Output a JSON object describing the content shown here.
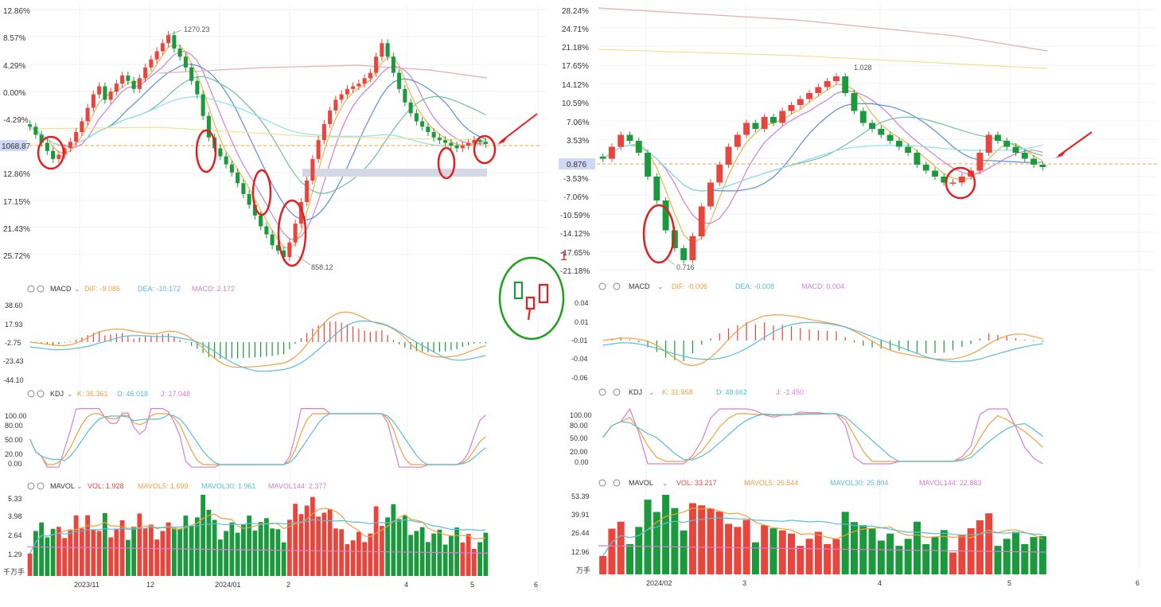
{
  "colors": {
    "up": "#e8453c",
    "down": "#1a9a3c",
    "dif": "#f0a040",
    "dea": "#5bbcd6",
    "macd_label": "#d47fd0",
    "k": "#f0a040",
    "d": "#5bbcd6",
    "j": "#d47fd0",
    "vol": "#f0a040",
    "mavol5": "#f0a040",
    "mavol30": "#5bbcd6",
    "mavol144": "#d47fd0",
    "annotation_red": "#e02020",
    "annotation_green": "#20a020",
    "current_price_line": "#f0a040",
    "current_price_box": "#cfd8f5"
  },
  "left": {
    "price_axis": [
      "12.86%",
      "8.57%",
      "4.29%",
      "0.00%",
      "-4.29%",
      "1068.87",
      "12.86%",
      "17.15%",
      "21.43%",
      "25.72%"
    ],
    "high_label": "1270.23",
    "low_label": "858.12",
    "macd_header": {
      "name": "MACD",
      "dif": "DIF: -9.086",
      "dea": "DEA: -10.172",
      "macd": "MACD: 2.172"
    },
    "macd_axis": [
      "38.60",
      "17.93",
      "-2.75",
      "-23.43",
      "-44.10"
    ],
    "kdj_header": {
      "name": "KDJ",
      "k": "K: 36.361",
      "d": "D: 46.018",
      "j": "J: 17.048"
    },
    "kdj_axis": [
      "100.00",
      "80.00",
      "50.00",
      "20.00",
      "0.00"
    ],
    "mavol_header": {
      "name": "MAVOL",
      "vol": "VOL: 1.928",
      "mavol5": "MAVOL5: 1.699",
      "mavol30": "MAVOL30: 1.961",
      "mavol144": "MAVOL144: 2.377"
    },
    "vol_axis": [
      "5.33",
      "3.98",
      "2.64",
      "1.29",
      "千万手"
    ],
    "x_axis": [
      "2023/11",
      "12",
      "2024/01",
      "2",
      "4",
      "5",
      "6"
    ]
  },
  "right": {
    "price_axis": [
      "28.24%",
      "24.71%",
      "21.18%",
      "17.65%",
      "14.12%",
      "10.59%",
      "7.06%",
      "3.53%",
      "0.876",
      "-3.53%",
      "-7.06%",
      "-10.59%",
      "-14.12%",
      "-17.65%",
      "-21.18%"
    ],
    "high_label": "1.028",
    "low_label": "0.716",
    "macd_header": {
      "name": "MACD",
      "dif": "DIF: -0.006",
      "dea": "DEA: -0.008",
      "macd": "MACD: 0.004"
    },
    "macd_axis": [
      "0.04",
      "0.01",
      "-0.01",
      "-0.04",
      "-0.06"
    ],
    "kdj_header": {
      "name": "KDJ",
      "k": "K: 31.958",
      "d": "D: 48.662",
      "j": "J: -1.450"
    },
    "kdj_axis": [
      "100.00",
      "80.00",
      "50.00",
      "20.00",
      "0.00"
    ],
    "mavol_header": {
      "name": "MAVOL",
      "vol": "VOL: 33.217",
      "mavol5": "MAVOL5: 26.544",
      "mavol30": "MAVOL30: 25.804",
      "mavol144": "MAVOL144: 22.883"
    },
    "vol_axis": [
      "53.39",
      "39.91",
      "26.44",
      "12.96",
      "万手"
    ],
    "x_axis": [
      "2024/02",
      "3",
      "4",
      "5",
      "6"
    ]
  },
  "annotation": {
    "mark": "1"
  },
  "chart_data": [
    {
      "type": "candlestick",
      "title": "",
      "panel": "left",
      "price_high": 1270.23,
      "price_low": 858.12,
      "current": 1068.87,
      "closes": [
        1100,
        1085,
        1070,
        1055,
        1040,
        1048,
        1060,
        1072,
        1090,
        1110,
        1135,
        1160,
        1175,
        1150,
        1165,
        1180,
        1195,
        1185,
        1170,
        1190,
        1210,
        1225,
        1240,
        1255,
        1270,
        1245,
        1230,
        1210,
        1185,
        1160,
        1120,
        1080,
        1060,
        1045,
        1030,
        1015,
        995,
        975,
        955,
        935,
        915,
        900,
        880,
        870,
        858,
        885,
        920,
        960,
        1000,
        1040,
        1075,
        1105,
        1130,
        1150,
        1160,
        1170,
        1175,
        1180,
        1190,
        1200,
        1230,
        1255,
        1230,
        1200,
        1170,
        1145,
        1125,
        1110,
        1100,
        1090,
        1080,
        1075,
        1070,
        1065,
        1060,
        1065,
        1070,
        1075,
        1072,
        1068
      ],
      "x_ticks": [
        "2023/11",
        "12",
        "2024/01",
        "2",
        "4",
        "5",
        "6"
      ]
    },
    {
      "type": "candlestick",
      "title": "",
      "panel": "right",
      "price_high": 1.028,
      "price_low": 0.716,
      "current": 0.876,
      "closes": [
        0.89,
        0.91,
        0.93,
        0.92,
        0.9,
        0.86,
        0.82,
        0.77,
        0.74,
        0.72,
        0.76,
        0.81,
        0.85,
        0.88,
        0.91,
        0.93,
        0.95,
        0.94,
        0.96,
        0.95,
        0.97,
        0.98,
        0.99,
        1.0,
        1.01,
        1.02,
        1.028,
        1.0,
        0.97,
        0.95,
        0.94,
        0.93,
        0.92,
        0.91,
        0.9,
        0.88,
        0.87,
        0.86,
        0.85,
        0.85,
        0.86,
        0.87,
        0.9,
        0.93,
        0.92,
        0.91,
        0.9,
        0.89,
        0.88,
        0.876
      ],
      "x_ticks": [
        "2024/02",
        "3",
        "4",
        "5",
        "6"
      ]
    }
  ]
}
